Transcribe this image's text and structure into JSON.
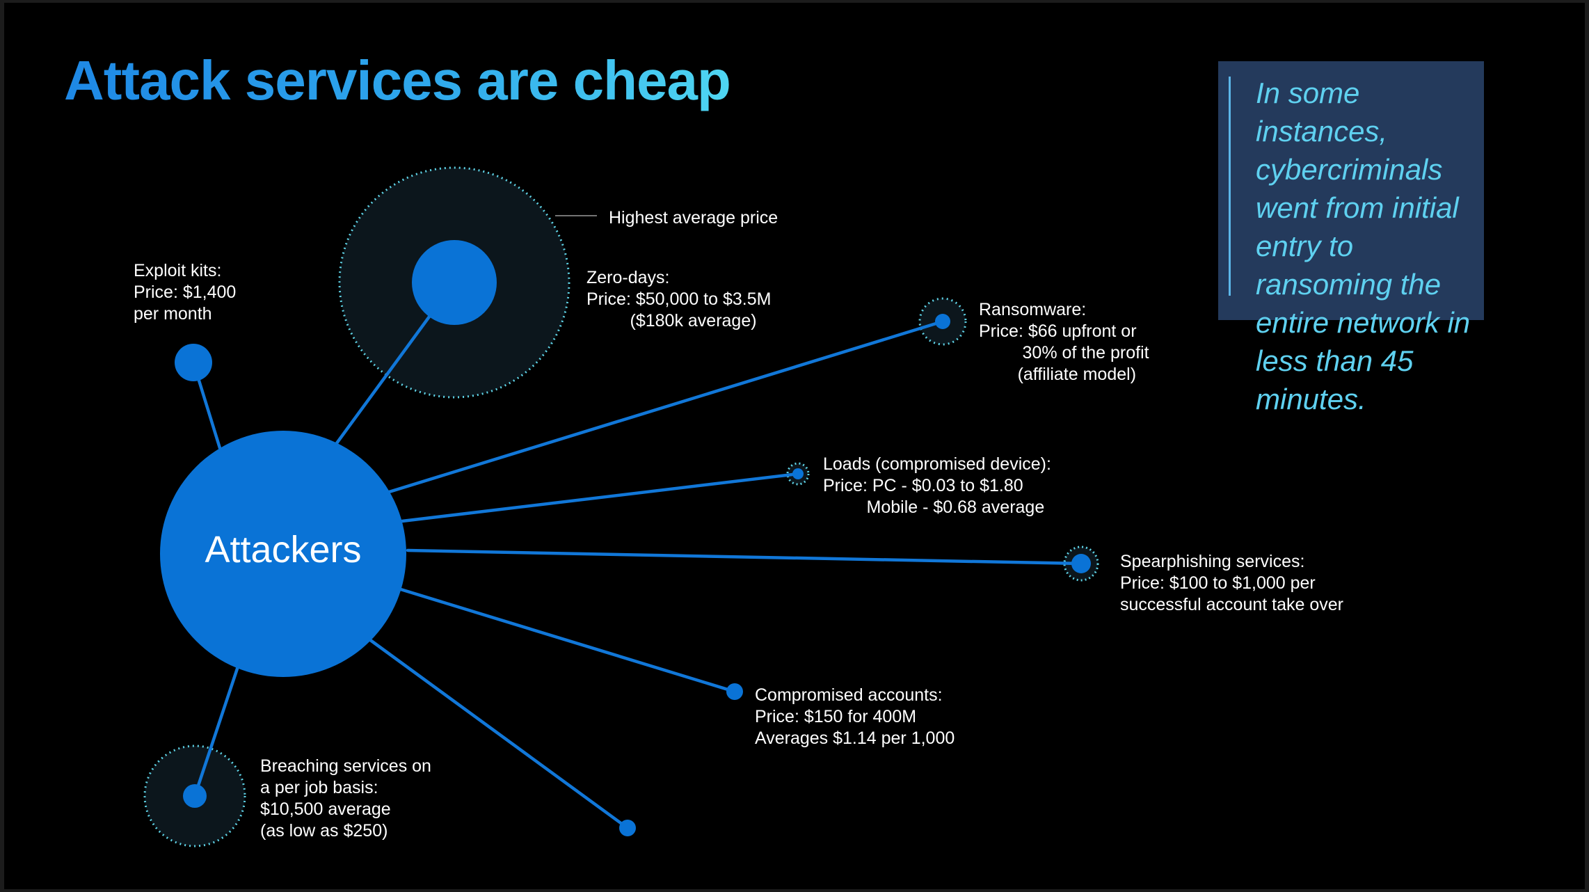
{
  "title": "Attack services are cheap",
  "hub": "Attackers",
  "callout": "In some instances, cybercriminals went from initial entry to ransoming the entire network in less than 45 minutes.",
  "annotation": "Highest average price",
  "nodes": {
    "exploit_kits": {
      "label": "Exploit kits:\nPrice: $1,400\nper month"
    },
    "zero_days": {
      "label": "Zero-days:\nPrice: $50,000 to $3.5M\n         ($180k average)"
    },
    "ransomware": {
      "label": "Ransomware:\nPrice: $66 upfront or\n         30% of the profit\n        (affiliate model)"
    },
    "loads": {
      "label": "Loads (compromised device):\nPrice: PC - $0.03 to $1.80\n         Mobile - $0.68 average"
    },
    "spearphishing": {
      "label": "Spearphishing services:\nPrice: $100 to $1,000 per\nsuccessful account take over"
    },
    "compromised_accounts": {
      "label": "Compromised accounts:\nPrice: $150 for 400M\nAverages $1.14 per 1,000"
    },
    "breaching": {
      "label": "Breaching services on\na per job basis:\n$10,500 average\n(as low as $250)"
    },
    "bottom": {}
  },
  "colors": {
    "background": "#000000",
    "node": "#0a73d6",
    "line": "#1177d8",
    "halo_fill": "#0c161c",
    "halo_dots": "#5fd3e6",
    "callout_bg": "#243a5c",
    "callout_text": "#5fd1f0"
  }
}
